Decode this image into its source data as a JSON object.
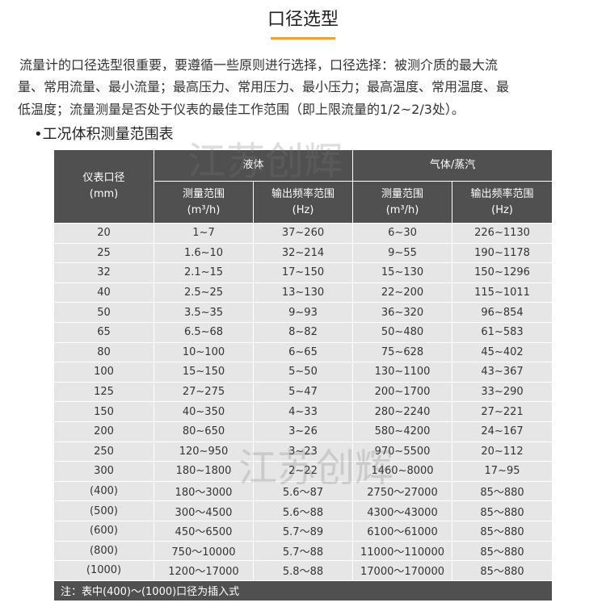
{
  "header": {
    "title": "口径选型"
  },
  "intro": {
    "lines": [
      "流量计的口径选型很重要，要遵循一些原则进行选择，口径选择：被测介质的最大流",
      "量、常用流量、最小流量；最高压力、常用压力、最小压力；最高温度、常用温度、最",
      "低温度；流量测量是否处于仪表的最佳工作范围（即上限流量的1/2~2/3处）。"
    ]
  },
  "section": {
    "title": "•工况体积测量范围表"
  },
  "watermark": "江苏创辉",
  "table": {
    "head": {
      "diameter": "仪表口径",
      "diameter_unit": "(mm)",
      "liquid": "液体",
      "gas": "气体/蒸汽",
      "range": "测量范围",
      "range_unit": "(m³/h)",
      "freq": "输出频率范围",
      "freq_unit": "(Hz)"
    },
    "rows": [
      [
        "20",
        "1~7",
        "37~260",
        "6~30",
        "226~1130"
      ],
      [
        "25",
        "1.6~10",
        "32~214",
        "9~55",
        "190~1178"
      ],
      [
        "32",
        "2.1~15",
        "17~150",
        "15~130",
        "150~1296"
      ],
      [
        "40",
        "2.5~25",
        "13~130",
        "22~200",
        "115~1011"
      ],
      [
        "50",
        "3.5~35",
        "9~93",
        "36~320",
        "96~854"
      ],
      [
        "65",
        "6.5~68",
        "8~82",
        "50~480",
        "61~583"
      ],
      [
        "80",
        "10~100",
        "6~65",
        "75~628",
        "45~402"
      ],
      [
        "100",
        "15~150",
        "5~50",
        "130~1100",
        "43~367"
      ],
      [
        "125",
        "27~275",
        "5~47",
        "200~1700",
        "33~290"
      ],
      [
        "150",
        "40~350",
        "4~33",
        "280~2240",
        "27~221"
      ],
      [
        "200",
        "80~650",
        "3~26",
        "580~4200",
        "24~167"
      ],
      [
        "250",
        "120~950",
        "3~23",
        "970~5500",
        "20~112"
      ],
      [
        "300",
        "180~1800",
        "2~22",
        "1460~8000",
        "17~95"
      ],
      [
        "(400)",
        "180～3000",
        "5.6～87",
        "2750～27000",
        "85～880"
      ],
      [
        "(500)",
        "300～4500",
        "5.6～88",
        "4300～43000",
        "85～880"
      ],
      [
        "(600)",
        "450～6500",
        "5.7～89",
        "6100～61000",
        "85～880"
      ],
      [
        "(800)",
        "750～10000",
        "5.7～88",
        "11000～110000",
        "85～880"
      ],
      [
        "(1000)",
        "1200～17000",
        "5.8～88",
        "17000～170000",
        "85～880"
      ]
    ],
    "note": "注：表中(400)～(1000)口径为插入式"
  }
}
